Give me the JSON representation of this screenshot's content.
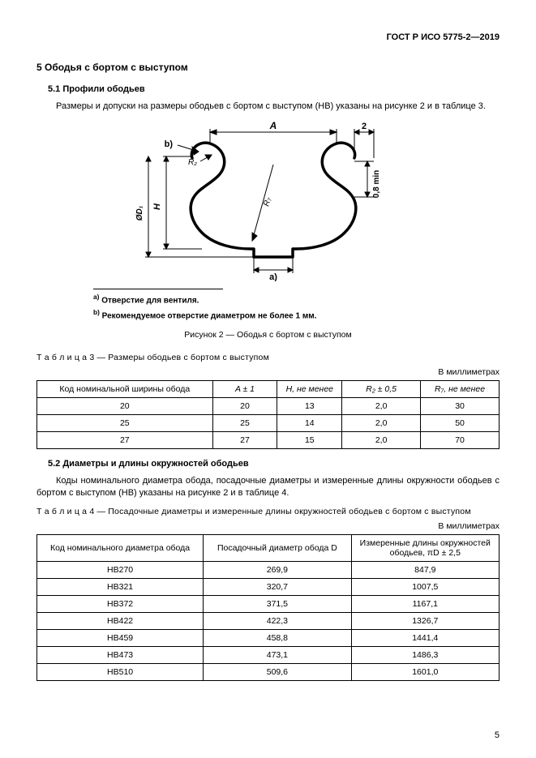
{
  "header": {
    "doc_code": "ГОСТ Р ИСО 5775-2—2019"
  },
  "section5": {
    "title": "5  Ободья с бортом с выступом",
    "s51": {
      "title": "5.1 Профили ободьев",
      "p1": "Размеры и допуски на размеры ободьев с бортом с выступом (HB) указаны на рисунке 2 и в таблице 3."
    },
    "s52": {
      "title": "5.2 Диаметры и длины окружностей ободьев",
      "p1": "Коды номинального диаметра обода, посадочные диаметры и измеренные длины окружности ободьев с бортом с выступом (HB) указаны на рисунке 2 и в таблице 4."
    }
  },
  "figure2": {
    "labels": {
      "A": "A",
      "two": "2",
      "b": "b)",
      "a": "a)",
      "R2": "R₂",
      "R7": "R₇",
      "H": "H",
      "D": "ØD₁",
      "vmin": "0,8 min"
    },
    "footnote_a": "Отверстие для вентиля.",
    "footnote_b": "Рекомендуемое отверстие диаметром не более 1 мм.",
    "footnote_a_sup": "a)",
    "footnote_b_sup": "b)",
    "caption": "Рисунок 2 — Ободья с бортом с выступом"
  },
  "table3": {
    "caption_prefix": "Т а б л и ц а   3",
    "caption_rest": " — Размеры ободьев с бортом с выступом",
    "unit": "В миллиметрах",
    "columns": [
      "Код номинальной ширины обода",
      "A ± 1",
      "H, не менее",
      "R₂ ± 0,5",
      "R₇, не менее"
    ],
    "rows": [
      [
        "20",
        "20",
        "13",
        "2,0",
        "30"
      ],
      [
        "25",
        "25",
        "14",
        "2,0",
        "50"
      ],
      [
        "27",
        "27",
        "15",
        "2,0",
        "70"
      ]
    ],
    "colwidths": [
      "38%",
      "14%",
      "14%",
      "17%",
      "17%"
    ]
  },
  "table4": {
    "caption_prefix": "Т а б л и ц а   4",
    "caption_rest": " — Посадочные диаметры и измеренные длины окружностей ободьев с бортом с выступом",
    "unit": "В миллиметрах",
    "columns": [
      "Код номинального диаметра обода",
      "Посадочный диаметр обода D",
      "Измеренные длины окружностей ободьев, πD ± 2,5"
    ],
    "rows": [
      [
        "HB270",
        "269,9",
        "847,9"
      ],
      [
        "HB321",
        "320,7",
        "1007,5"
      ],
      [
        "HB372",
        "371,5",
        "1167,1"
      ],
      [
        "HB422",
        "422,3",
        "1326,7"
      ],
      [
        "HB459",
        "458,8",
        "1441,4"
      ],
      [
        "HB473",
        "473,1",
        "1486,3"
      ],
      [
        "HB510",
        "509,6",
        "1601,0"
      ]
    ],
    "colwidths": [
      "36%",
      "32%",
      "32%"
    ]
  },
  "page_num": "5"
}
